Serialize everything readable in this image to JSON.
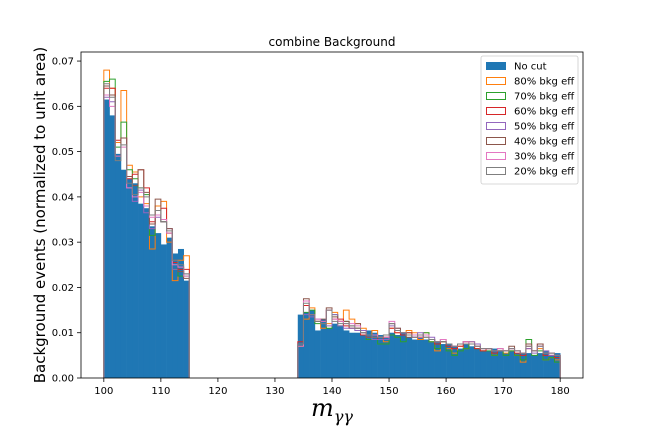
{
  "chart_data": {
    "type": "histogram",
    "title": "combine Background",
    "xlabel": "m_{γγ}",
    "ylabel": "Background events (normalized to unit area)",
    "xlim": [
      96,
      184
    ],
    "ylim": [
      0,
      0.072
    ],
    "xticks": [
      100,
      110,
      120,
      130,
      140,
      150,
      160,
      170,
      180
    ],
    "yticks": [
      0.0,
      0.01,
      0.02,
      0.03,
      0.04,
      0.05,
      0.06,
      0.07
    ],
    "ytick_labels": [
      "0.00",
      "0.01",
      "0.02",
      "0.03",
      "0.04",
      "0.05",
      "0.06",
      "0.07"
    ],
    "grid": false,
    "legend_position": "upper right",
    "bin_width": 1,
    "bin_edges_start": [
      100,
      134
    ],
    "series": [
      {
        "name": "No cut",
        "style": "filled",
        "color": "#1f77b4",
        "values": [
          [
            0.0615,
            0.058,
            0.0495,
            0.046,
            0.044,
            0.043,
            0.0385,
            0.0375,
            0.0335,
            0.032,
            0.0295,
            0.031,
            0.0275,
            0.0285,
            0.0215
          ],
          [
            0.014,
            0.0145,
            0.015,
            0.0105,
            0.013,
            0.011,
            0.012,
            0.0115,
            0.0105,
            0.01,
            0.01,
            0.0095,
            0.0105,
            0.01,
            0.0095,
            0.009,
            0.01,
            0.0095,
            0.01,
            0.009,
            0.0085,
            0.009,
            0.0085,
            0.008,
            0.008,
            0.0075,
            0.0075,
            0.007,
            0.0065,
            0.0075,
            0.007,
            0.0065,
            0.006,
            0.006,
            0.0065,
            0.006,
            0.0055,
            0.006,
            0.0055,
            0.0055,
            0.0055,
            0.005,
            0.0055,
            0.006,
            0.005,
            0.0055
          ]
        ]
      },
      {
        "name": "80% bkg eff",
        "style": "step",
        "color": "#ff7f0e",
        "values": [
          [
            0.068,
            0.064,
            0.052,
            0.0635,
            0.047,
            0.0455,
            0.04,
            0.0385,
            0.0285,
            0.038,
            0.039,
            0.03,
            0.0215,
            0.026,
            0.027
          ],
          [
            0.007,
            0.013,
            0.0155,
            0.0125,
            0.011,
            0.012,
            0.0145,
            0.0125,
            0.015,
            0.013,
            0.012,
            0.011,
            0.0095,
            0.0105,
            0.009,
            0.008,
            0.011,
            0.01,
            0.0095,
            0.0105,
            0.01,
            0.0085,
            0.01,
            0.008,
            0.006,
            0.0085,
            0.0065,
            0.0055,
            0.007,
            0.0065,
            0.008,
            0.007,
            0.006,
            0.0065,
            0.005,
            0.006,
            0.0055,
            0.006,
            0.005,
            0.0035,
            0.007,
            0.006,
            0.0065,
            0.004,
            0.0045,
            0.004
          ]
        ]
      },
      {
        "name": "70% bkg eff",
        "style": "step",
        "color": "#2ca02c",
        "values": [
          [
            0.0655,
            0.066,
            0.051,
            0.0565,
            0.046,
            0.044,
            0.042,
            0.0405,
            0.0315,
            0.036,
            0.0345,
            0.032,
            0.024,
            0.0225,
            0.0225
          ],
          [
            0.007,
            0.0145,
            0.015,
            0.012,
            0.012,
            0.011,
            0.014,
            0.0115,
            0.0125,
            0.011,
            0.011,
            0.01,
            0.0085,
            0.0095,
            0.0075,
            0.0075,
            0.0095,
            0.009,
            0.008,
            0.01,
            0.0095,
            0.009,
            0.01,
            0.008,
            0.0065,
            0.008,
            0.006,
            0.005,
            0.006,
            0.0065,
            0.0075,
            0.0065,
            0.006,
            0.006,
            0.005,
            0.006,
            0.005,
            0.006,
            0.005,
            0.004,
            0.0085,
            0.005,
            0.006,
            0.004,
            0.0045,
            0.0035
          ]
        ]
      },
      {
        "name": "60% bkg eff",
        "style": "step",
        "color": "#d62728",
        "values": [
          [
            0.064,
            0.064,
            0.0525,
            0.053,
            0.044,
            0.045,
            0.046,
            0.042,
            0.0345,
            0.037,
            0.0375,
            0.032,
            0.0255,
            0.024,
            0.024
          ],
          [
            0.008,
            0.016,
            0.014,
            0.0125,
            0.0125,
            0.015,
            0.013,
            0.013,
            0.0115,
            0.011,
            0.011,
            0.0095,
            0.009,
            0.009,
            0.0085,
            0.009,
            0.011,
            0.01,
            0.0095,
            0.01,
            0.009,
            0.009,
            0.0095,
            0.0085,
            0.0075,
            0.008,
            0.007,
            0.0065,
            0.007,
            0.008,
            0.0075,
            0.0065,
            0.006,
            0.0065,
            0.0055,
            0.006,
            0.006,
            0.0065,
            0.0055,
            0.005,
            0.0065,
            0.006,
            0.0075,
            0.005,
            0.005,
            0.0045
          ]
        ]
      },
      {
        "name": "50% bkg eff",
        "style": "step",
        "color": "#9467bd",
        "values": [
          [
            0.062,
            0.061,
            0.049,
            0.053,
            0.042,
            0.039,
            0.0415,
            0.0365,
            0.033,
            0.0355,
            0.0345,
            0.033,
            0.024,
            0.0245,
            0.023
          ],
          [
            0.0075,
            0.014,
            0.0135,
            0.013,
            0.012,
            0.0115,
            0.014,
            0.0115,
            0.011,
            0.011,
            0.0105,
            0.0105,
            0.009,
            0.0085,
            0.0085,
            0.0085,
            0.0115,
            0.011,
            0.01,
            0.0095,
            0.009,
            0.01,
            0.0095,
            0.009,
            0.008,
            0.0085,
            0.0075,
            0.007,
            0.0075,
            0.0075,
            0.008,
            0.0075,
            0.0065,
            0.0065,
            0.006,
            0.006,
            0.006,
            0.0065,
            0.006,
            0.0055,
            0.0065,
            0.0055,
            0.007,
            0.006,
            0.005,
            0.005
          ]
        ]
      },
      {
        "name": "40% bkg eff",
        "style": "step",
        "color": "#8c564b",
        "values": [
          [
            0.0645,
            0.0625,
            0.049,
            0.053,
            0.0445,
            0.0425,
            0.046,
            0.041,
            0.034,
            0.0395,
            0.0345,
            0.033,
            0.026,
            0.0235,
            0.022
          ],
          [
            0.007,
            0.0175,
            0.014,
            0.0125,
            0.013,
            0.0155,
            0.0135,
            0.0125,
            0.0125,
            0.0115,
            0.012,
            0.01,
            0.009,
            0.0095,
            0.009,
            0.009,
            0.012,
            0.011,
            0.01,
            0.009,
            0.0095,
            0.0095,
            0.009,
            0.0085,
            0.008,
            0.008,
            0.0075,
            0.007,
            0.0075,
            0.008,
            0.0075,
            0.007,
            0.0065,
            0.0065,
            0.006,
            0.0065,
            0.006,
            0.007,
            0.006,
            0.0055,
            0.0075,
            0.006,
            0.0075,
            0.0055,
            0.0055,
            0.005
          ]
        ]
      },
      {
        "name": "30% bkg eff",
        "style": "step",
        "color": "#e377c2",
        "values": [
          [
            0.0625,
            0.06,
            0.049,
            0.051,
            0.042,
            0.04,
            0.041,
            0.038,
            0.0355,
            0.036,
            0.035,
            0.032,
            0.025,
            0.0245,
            0.0225
          ],
          [
            0.007,
            0.017,
            0.014,
            0.013,
            0.0125,
            0.015,
            0.013,
            0.0125,
            0.012,
            0.012,
            0.0115,
            0.01,
            0.0095,
            0.0095,
            0.009,
            0.009,
            0.0125,
            0.0105,
            0.01,
            0.0095,
            0.0095,
            0.009,
            0.0095,
            0.0085,
            0.008,
            0.0085,
            0.0075,
            0.007,
            0.0075,
            0.008,
            0.0075,
            0.007,
            0.0065,
            0.0065,
            0.006,
            0.0065,
            0.006,
            0.0065,
            0.006,
            0.0055,
            0.007,
            0.006,
            0.007,
            0.0055,
            0.0055,
            0.005
          ]
        ]
      },
      {
        "name": "20% bkg eff",
        "style": "step",
        "color": "#7f7f7f",
        "values": [
          [
            0.065,
            0.062,
            0.048,
            0.0515,
            0.043,
            0.0405,
            0.042,
            0.04,
            0.036,
            0.037,
            0.0345,
            0.0325,
            0.026,
            0.025,
            0.023
          ],
          [
            0.0075,
            0.0165,
            0.014,
            0.0125,
            0.012,
            0.015,
            0.0125,
            0.012,
            0.012,
            0.0115,
            0.011,
            0.01,
            0.0095,
            0.009,
            0.009,
            0.0095,
            0.012,
            0.0105,
            0.01,
            0.0095,
            0.009,
            0.0095,
            0.009,
            0.0085,
            0.008,
            0.008,
            0.0075,
            0.007,
            0.0075,
            0.0075,
            0.0075,
            0.007,
            0.0065,
            0.0065,
            0.006,
            0.006,
            0.006,
            0.0065,
            0.006,
            0.0055,
            0.007,
            0.006,
            0.007,
            0.0055,
            0.0055,
            0.005
          ]
        ]
      }
    ]
  }
}
